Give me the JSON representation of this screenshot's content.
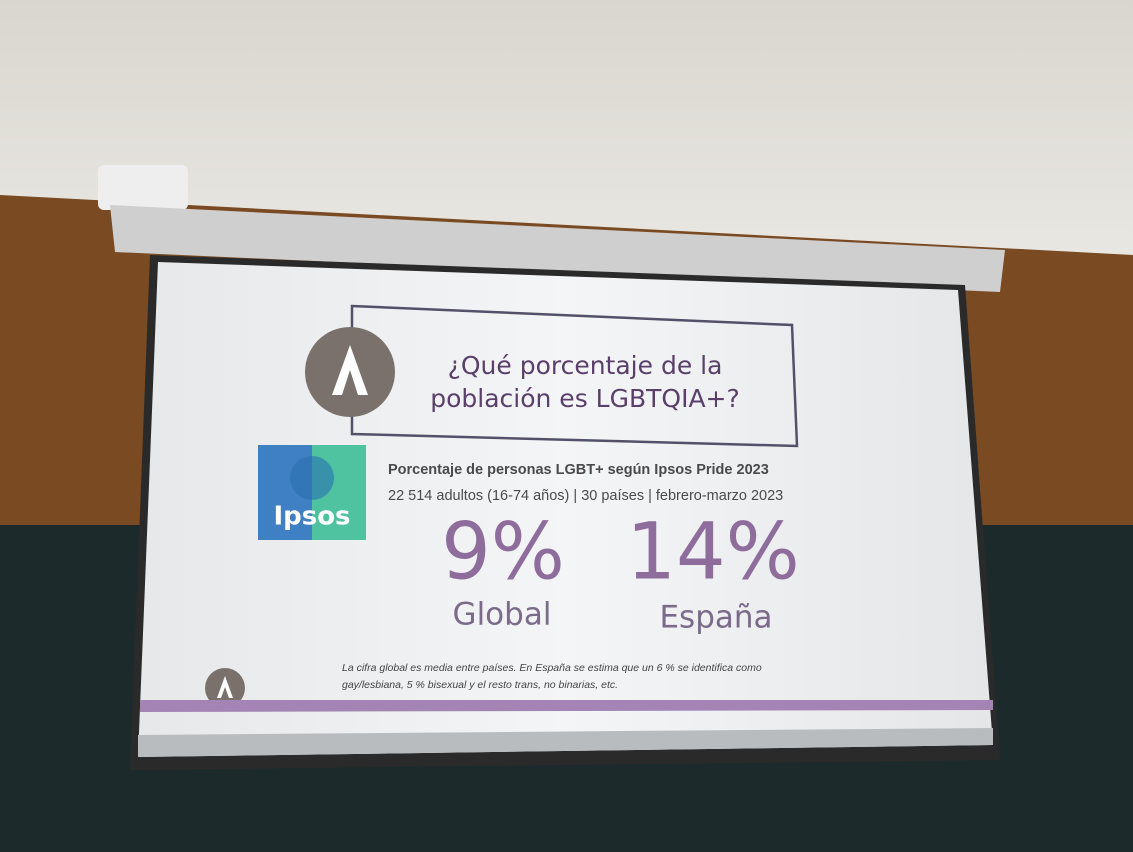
{
  "slide": {
    "title_lines": [
      "¿Qué porcentaje de la",
      "población es LGBTQIA+?"
    ],
    "logo_text": "Ipsos",
    "subtitle": "Porcentaje de personas LGBT+ según Ipsos Pride 2023",
    "details": "22 514 adultos (16-74 años) | 30 países | febrero-marzo 2023",
    "stats": [
      {
        "figure": "9%",
        "label": "Global"
      },
      {
        "figure": "14%",
        "label": "España"
      }
    ],
    "footnote_lines": [
      "La cifra global es media entre países. En España se estima que un 6 % se identifica como",
      "gay/lesbiana, 5 % bisexual y el resto trans, no binarias, etc."
    ]
  }
}
